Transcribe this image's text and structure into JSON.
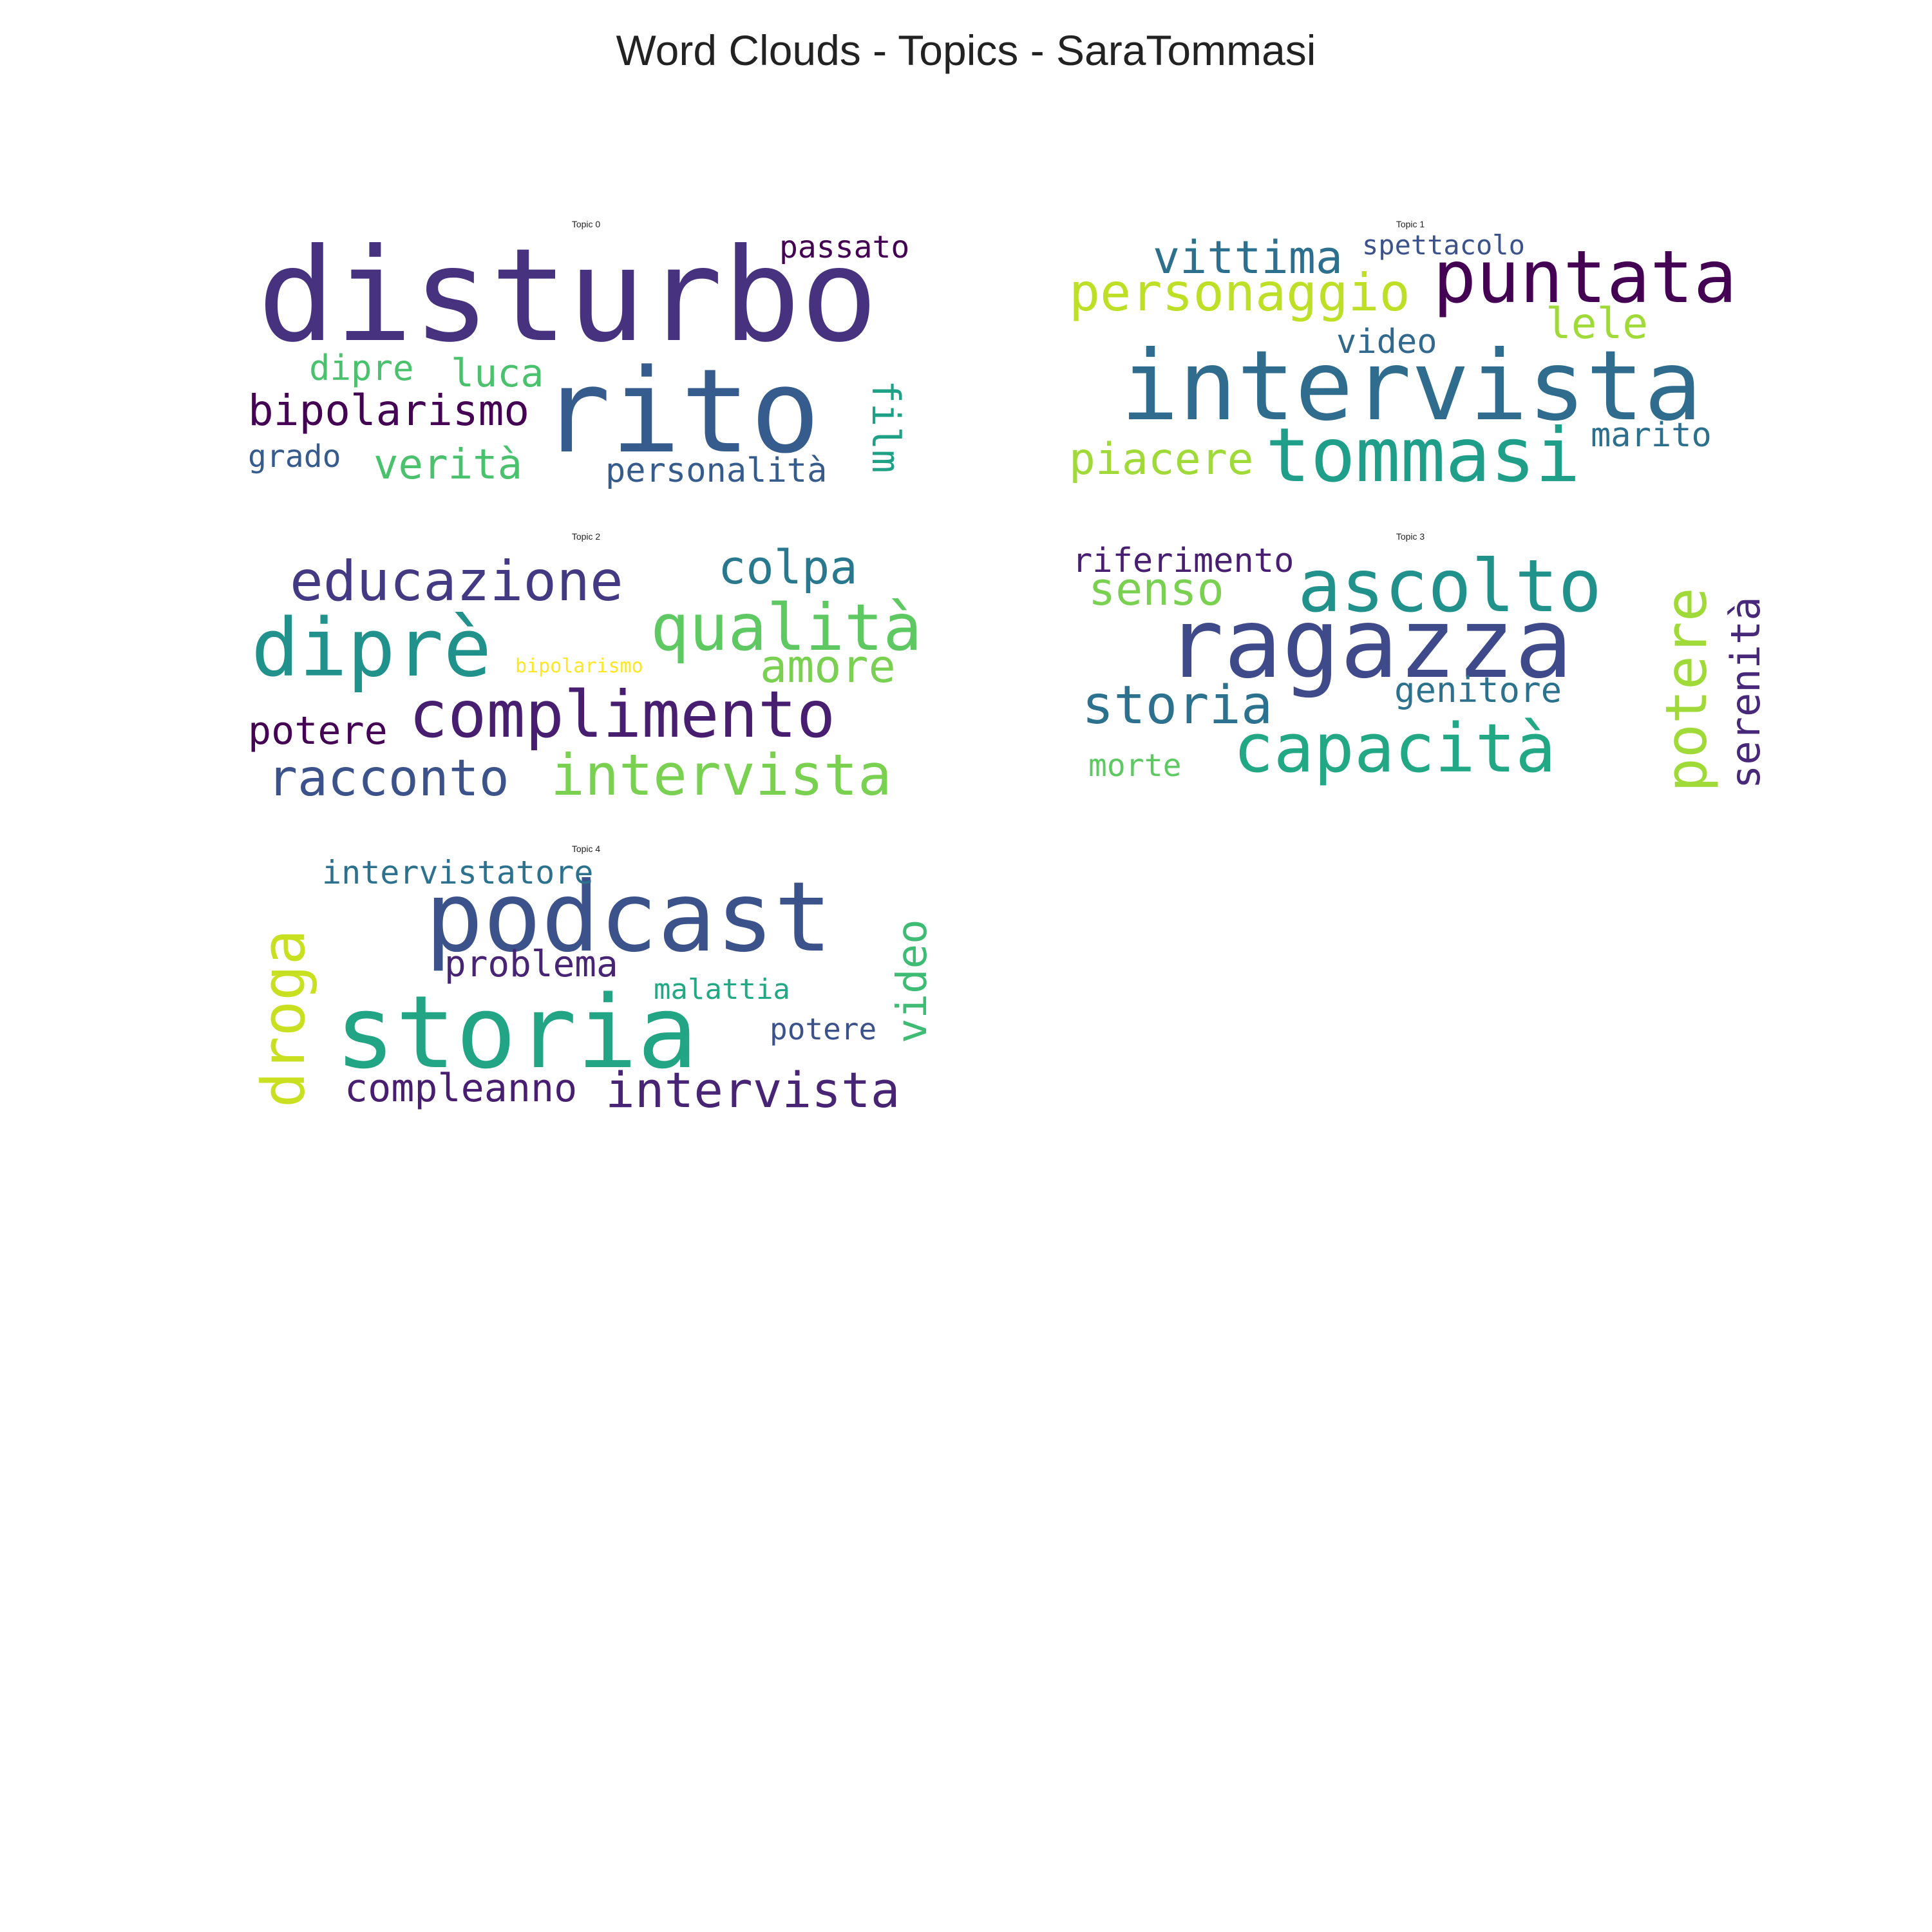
{
  "title": "Word Clouds - Topics - SaraTommasi",
  "chart_data": [
    {
      "type": "wordcloud",
      "title": "Topic 0",
      "words": [
        {
          "text": "disturbo",
          "color": "#46327e"
        },
        {
          "text": "rito",
          "color": "#365c8d"
        },
        {
          "text": "bipolarismo",
          "color": "#440154"
        },
        {
          "text": "passato",
          "color": "#440154"
        },
        {
          "text": "luca",
          "color": "#4ac16d"
        },
        {
          "text": "dipre",
          "color": "#4ac16d"
        },
        {
          "text": "verità",
          "color": "#4ac16d"
        },
        {
          "text": "film",
          "color": "#1fa187"
        },
        {
          "text": "grado",
          "color": "#365c8d"
        },
        {
          "text": "personalità",
          "color": "#365c8d"
        }
      ]
    },
    {
      "type": "wordcloud",
      "title": "Topic 1",
      "words": [
        {
          "text": "intervista",
          "color": "#2f6c8e"
        },
        {
          "text": "tommasi",
          "color": "#1f9e89"
        },
        {
          "text": "puntata",
          "color": "#440154"
        },
        {
          "text": "personaggio",
          "color": "#bddf26"
        },
        {
          "text": "vittima",
          "color": "#2d708e"
        },
        {
          "text": "spettacolo",
          "color": "#3b528b"
        },
        {
          "text": "lele",
          "color": "#a0da39"
        },
        {
          "text": "video",
          "color": "#31688e"
        },
        {
          "text": "piacere",
          "color": "#a0da39"
        },
        {
          "text": "marito",
          "color": "#2d708e"
        }
      ]
    },
    {
      "type": "wordcloud",
      "title": "Topic 2",
      "words": [
        {
          "text": "diprè",
          "color": "#21918c"
        },
        {
          "text": "complimento",
          "color": "#481f70"
        },
        {
          "text": "educazione",
          "color": "#443983"
        },
        {
          "text": "qualità",
          "color": "#5ec962"
        },
        {
          "text": "intervista",
          "color": "#7ad151"
        },
        {
          "text": "racconto",
          "color": "#3b528b"
        },
        {
          "text": "colpa",
          "color": "#2a788e"
        },
        {
          "text": "amore",
          "color": "#7ad151"
        },
        {
          "text": "potere",
          "color": "#440154"
        },
        {
          "text": "bipolarismo",
          "color": "#fde725"
        }
      ]
    },
    {
      "type": "wordcloud",
      "title": "Topic 3",
      "words": [
        {
          "text": "ragazza",
          "color": "#3e4a89"
        },
        {
          "text": "ascolto",
          "color": "#21918c"
        },
        {
          "text": "capacità",
          "color": "#22a884"
        },
        {
          "text": "potere",
          "color": "#a0da39"
        },
        {
          "text": "serenità",
          "color": "#482878"
        },
        {
          "text": "storia",
          "color": "#2c728e"
        },
        {
          "text": "senso",
          "color": "#7ad151"
        },
        {
          "text": "riferimento",
          "color": "#481f70"
        },
        {
          "text": "genitore",
          "color": "#2c728e"
        },
        {
          "text": "morte",
          "color": "#5ec962"
        }
      ]
    },
    {
      "type": "wordcloud",
      "title": "Topic 4",
      "words": [
        {
          "text": "podcast",
          "color": "#3b528b"
        },
        {
          "text": "storia",
          "color": "#21a585"
        },
        {
          "text": "droga",
          "color": "#c8e020"
        },
        {
          "text": "intervista",
          "color": "#482475"
        },
        {
          "text": "video",
          "color": "#3fbc73"
        },
        {
          "text": "intervistatore",
          "color": "#2c728e"
        },
        {
          "text": "problema",
          "color": "#482475"
        },
        {
          "text": "compleanno",
          "color": "#481f70"
        },
        {
          "text": "malattia",
          "color": "#22a884"
        },
        {
          "text": "potere",
          "color": "#3b528b"
        }
      ]
    }
  ]
}
